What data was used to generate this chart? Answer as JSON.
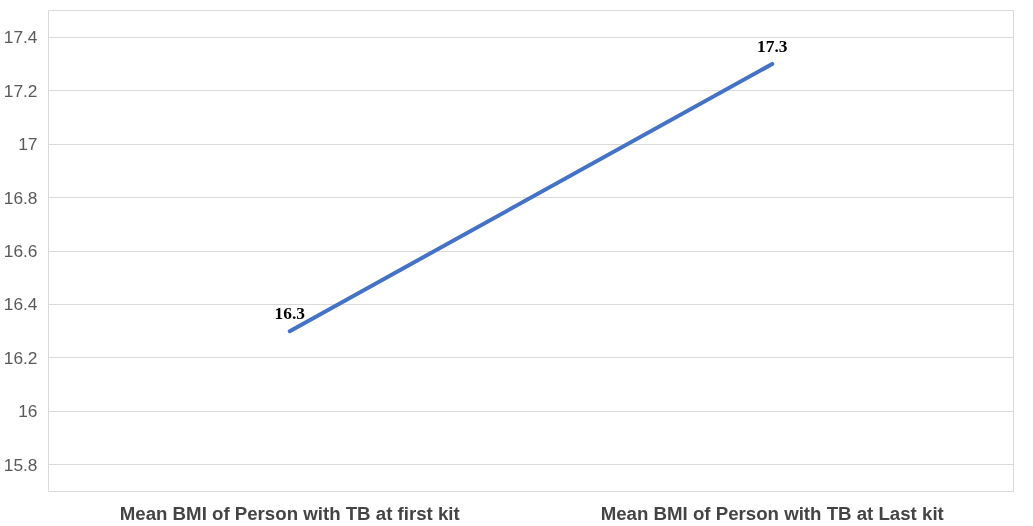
{
  "chart_data": {
    "type": "line",
    "categories": [
      "Mean BMI of Person with TB at first kit",
      "Mean BMI of Person with TB at Last kit"
    ],
    "series": [
      {
        "color": "#4472c4",
        "values": [
          16.3,
          17.3
        ]
      }
    ],
    "ylim": [
      15.7,
      17.5
    ],
    "yticks": [
      15.8,
      16,
      16.2,
      16.4,
      16.6,
      16.8,
      17,
      17.2,
      17.4
    ],
    "grid": "y",
    "data_labels": true,
    "marker": "none",
    "line_style": "solid"
  }
}
